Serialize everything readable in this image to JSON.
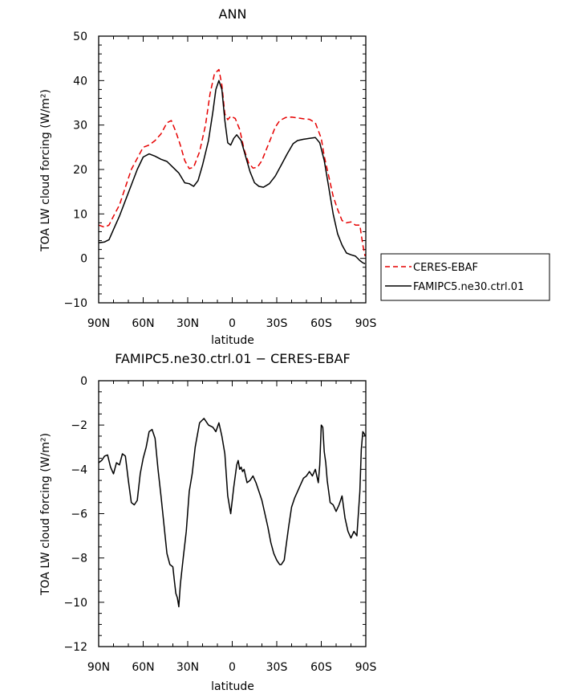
{
  "chart_data": [
    {
      "type": "line",
      "title": "ANN",
      "xlabel": "latitude",
      "ylabel": "TOA LW cloud forcing (W/m²)",
      "x_tick_labels": [
        "90N",
        "60N",
        "30N",
        "0",
        "30S",
        "60S",
        "90S"
      ],
      "x_tick_values": [
        90,
        60,
        30,
        0,
        -30,
        -60,
        -90
      ],
      "xlim": [
        90,
        -90
      ],
      "ylim": [
        -10,
        50
      ],
      "y_ticks": [
        -10,
        0,
        10,
        20,
        30,
        40,
        50
      ],
      "grid": false,
      "legend_placement": "right-bottom",
      "series": [
        {
          "name": "CERES-EBAF",
          "color": "#e60000",
          "dash": "dashed",
          "x": [
            90,
            86,
            83,
            80,
            76,
            72,
            68,
            64,
            60,
            56,
            52,
            48,
            44,
            41,
            38,
            35,
            32,
            29,
            26,
            22,
            18,
            15,
            12,
            9,
            7,
            5,
            3,
            1,
            -2,
            -5,
            -8,
            -11,
            -14,
            -17,
            -20,
            -23,
            -26,
            -29,
            -32,
            -36,
            -40,
            -44,
            -48,
            -52,
            -56,
            -60,
            -62,
            -65,
            -68,
            -71,
            -74,
            -77,
            -80,
            -83,
            -86,
            -88,
            -89.5
          ],
          "y": [
            7.5,
            7,
            7.5,
            9.5,
            12,
            16,
            20,
            22.5,
            25,
            25.5,
            26.5,
            28,
            30.5,
            31,
            28.5,
            25.5,
            22,
            20.2,
            20.5,
            24,
            30,
            37,
            41.5,
            42.5,
            39,
            32.5,
            31.2,
            32,
            31.5,
            29,
            24.5,
            21.5,
            20.3,
            20.5,
            22,
            24.5,
            27,
            29.5,
            31,
            31.7,
            31.8,
            31.6,
            31.4,
            31.3,
            30.5,
            27,
            23,
            18.5,
            14,
            11,
            8.5,
            8,
            8.2,
            7.5,
            7.5,
            3,
            0.5
          ]
        },
        {
          "name": "FAMIPC5.ne30.ctrl.01",
          "color": "#000000",
          "dash": "solid",
          "x": [
            90,
            86,
            83,
            80,
            76,
            72,
            68,
            64,
            60,
            56,
            52,
            48,
            44,
            40,
            36,
            32,
            29,
            26,
            23,
            20,
            16,
            13,
            11,
            9,
            7,
            5,
            3,
            1,
            -1,
            -3,
            -6,
            -9,
            -12,
            -15,
            -18,
            -21,
            -25,
            -29,
            -33,
            -37,
            -41,
            -44,
            -48,
            -52,
            -56,
            -59,
            -62,
            -65,
            -68,
            -71,
            -74,
            -77,
            -80,
            -83,
            -86,
            -88,
            -89.5
          ],
          "y": [
            3.5,
            3.7,
            4.2,
            6.5,
            9.5,
            13,
            16.5,
            20,
            22.8,
            23.5,
            23,
            22.3,
            21.8,
            20.5,
            19.2,
            17,
            16.8,
            16.2,
            17.5,
            21,
            26.5,
            33,
            38,
            40,
            38,
            31,
            26,
            25.5,
            27,
            27.8,
            26.5,
            23,
            19.5,
            17,
            16.2,
            16,
            16.8,
            18.5,
            21,
            23.5,
            25.8,
            26.5,
            26.8,
            27,
            27.2,
            26,
            22,
            16,
            10,
            5.5,
            3,
            1.2,
            0.8,
            0.5,
            -0.5,
            -1,
            -1.2
          ]
        }
      ]
    },
    {
      "type": "line",
      "title": "FAMIPC5.ne30.ctrl.01  −  CERES-EBAF",
      "xlabel": "latitude",
      "ylabel": "TOA LW cloud forcing (W/m²)",
      "x_tick_labels": [
        "90N",
        "60N",
        "30N",
        "0",
        "30S",
        "60S",
        "90S"
      ],
      "x_tick_values": [
        90,
        60,
        30,
        0,
        -30,
        -60,
        -90
      ],
      "xlim": [
        90,
        -90
      ],
      "ylim": [
        -12,
        0
      ],
      "y_ticks": [
        -12,
        -10,
        -8,
        -6,
        -4,
        -2,
        0
      ],
      "grid": false,
      "series": [
        {
          "color": "#000000",
          "dash": "solid",
          "x": [
            90,
            88,
            86,
            84,
            82,
            80,
            78,
            76,
            74,
            72,
            70,
            68,
            66,
            64,
            62,
            60,
            58,
            56,
            54,
            52,
            50,
            48,
            46,
            44,
            42,
            40,
            39,
            38,
            37,
            36,
            35,
            34,
            33,
            31,
            29,
            27,
            25,
            22,
            19,
            16,
            13,
            11,
            9,
            7,
            5,
            3,
            1,
            -1,
            -3,
            -4,
            -5,
            -6,
            -7,
            -8,
            -9,
            -10,
            -12,
            -14,
            -16,
            -18,
            -20,
            -22,
            -24,
            -26,
            -28,
            -30,
            -32,
            -33,
            -34,
            -35,
            -36,
            -38,
            -40,
            -42,
            -44,
            -46,
            -48,
            -50,
            -52,
            -54,
            -56,
            -58,
            -59,
            -60,
            -61,
            -62,
            -63,
            -64,
            -66,
            -68,
            -70,
            -72,
            -74,
            -76,
            -78,
            -80,
            -82,
            -84,
            -86,
            -87,
            -88,
            -89,
            -89.5
          ],
          "y": [
            -3.7,
            -3.6,
            -3.4,
            -3.35,
            -3.9,
            -4.2,
            -3.7,
            -3.8,
            -3.3,
            -3.4,
            -4.5,
            -5.5,
            -5.6,
            -5.4,
            -4.2,
            -3.5,
            -3,
            -2.3,
            -2.2,
            -2.6,
            -4,
            -5.2,
            -6.5,
            -7.8,
            -8.3,
            -8.4,
            -9,
            -9.6,
            -9.8,
            -10.2,
            -9.2,
            -8.6,
            -8,
            -6.8,
            -5,
            -4.2,
            -3,
            -1.9,
            -1.7,
            -2,
            -2.1,
            -2.3,
            -1.9,
            -2.5,
            -3.3,
            -5.2,
            -6,
            -4.8,
            -3.8,
            -3.6,
            -4,
            -3.9,
            -4.1,
            -4,
            -4.3,
            -4.6,
            -4.5,
            -4.3,
            -4.6,
            -5,
            -5.4,
            -6,
            -6.6,
            -7.3,
            -7.8,
            -8.1,
            -8.3,
            -8.3,
            -8.2,
            -8.1,
            -7.6,
            -6.6,
            -5.7,
            -5.3,
            -5,
            -4.7,
            -4.4,
            -4.3,
            -4.1,
            -4.3,
            -4,
            -4.6,
            -3.8,
            -2,
            -2.1,
            -3.2,
            -3.7,
            -4.5,
            -5.5,
            -5.6,
            -5.9,
            -5.6,
            -5.2,
            -6.2,
            -6.8,
            -7.1,
            -6.8,
            -7,
            -5,
            -3.1,
            -2.3,
            -2.4,
            -2.5
          ]
        }
      ]
    }
  ]
}
